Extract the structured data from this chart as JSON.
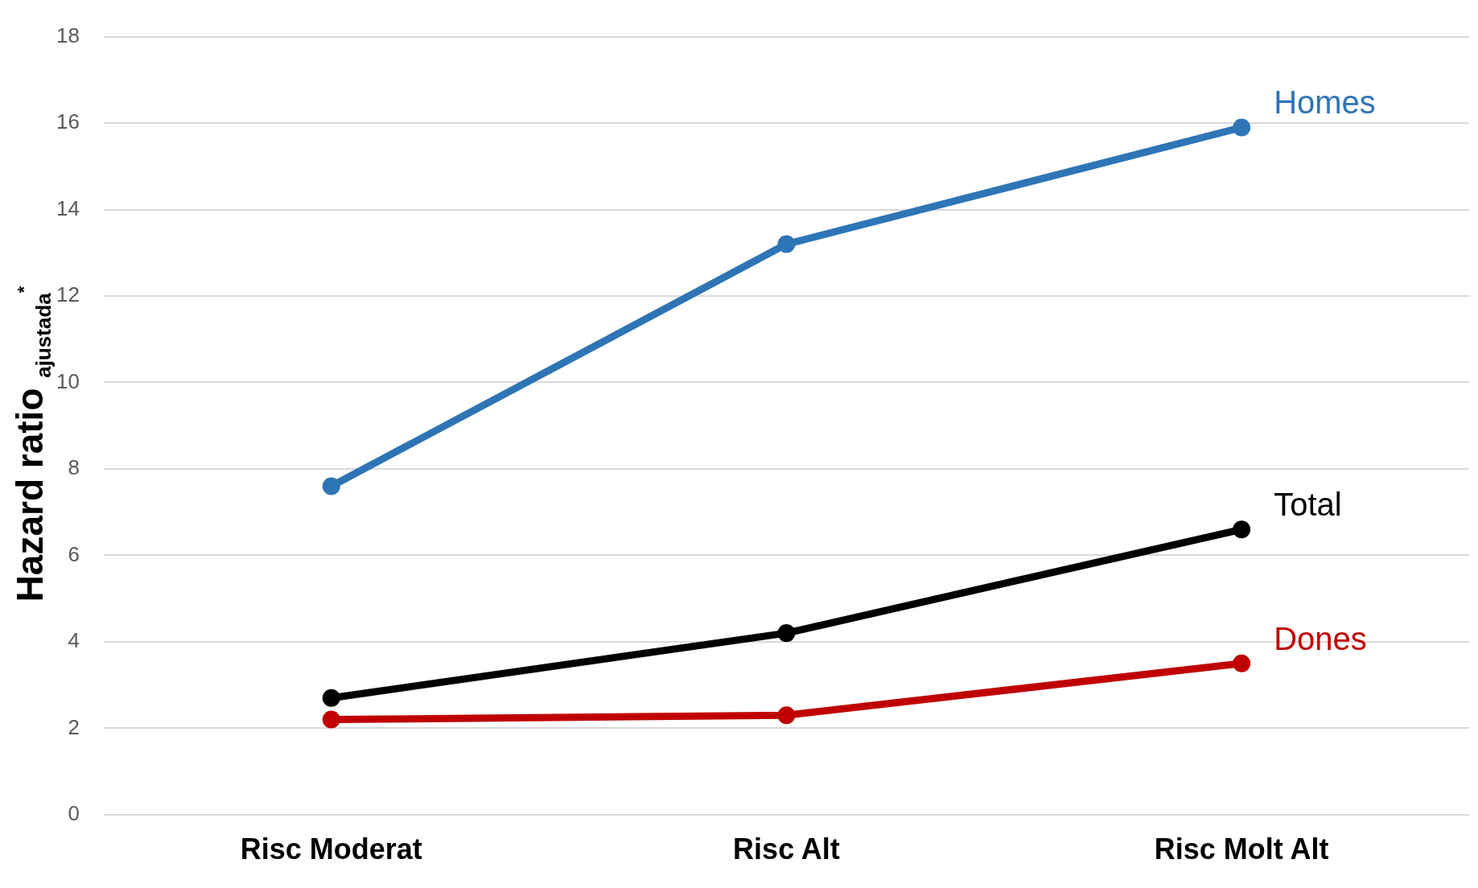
{
  "chart_data": {
    "type": "line",
    "ylabel": "Hazard ratio $_{ajustada}$$^{*}$",
    "categories": [
      "Risc Moderat",
      "Risc Alt",
      "Risc Molt Alt"
    ],
    "series": [
      {
        "name": "Homes",
        "color": "#2e75b6",
        "values": [
          7.6,
          13.2,
          15.9
        ]
      },
      {
        "name": "Total",
        "color": "#000000",
        "values": [
          2.7,
          4.2,
          6.6
        ]
      },
      {
        "name": "Dones",
        "color": "#c00000",
        "values": [
          2.2,
          2.3,
          3.5
        ]
      }
    ],
    "ylim": [
      0,
      18
    ],
    "yticks": [
      0,
      2,
      4,
      6,
      8,
      10,
      12,
      14,
      16,
      18
    ],
    "grid": "y",
    "legend": false,
    "marker": "circle",
    "line_style": "solid"
  }
}
